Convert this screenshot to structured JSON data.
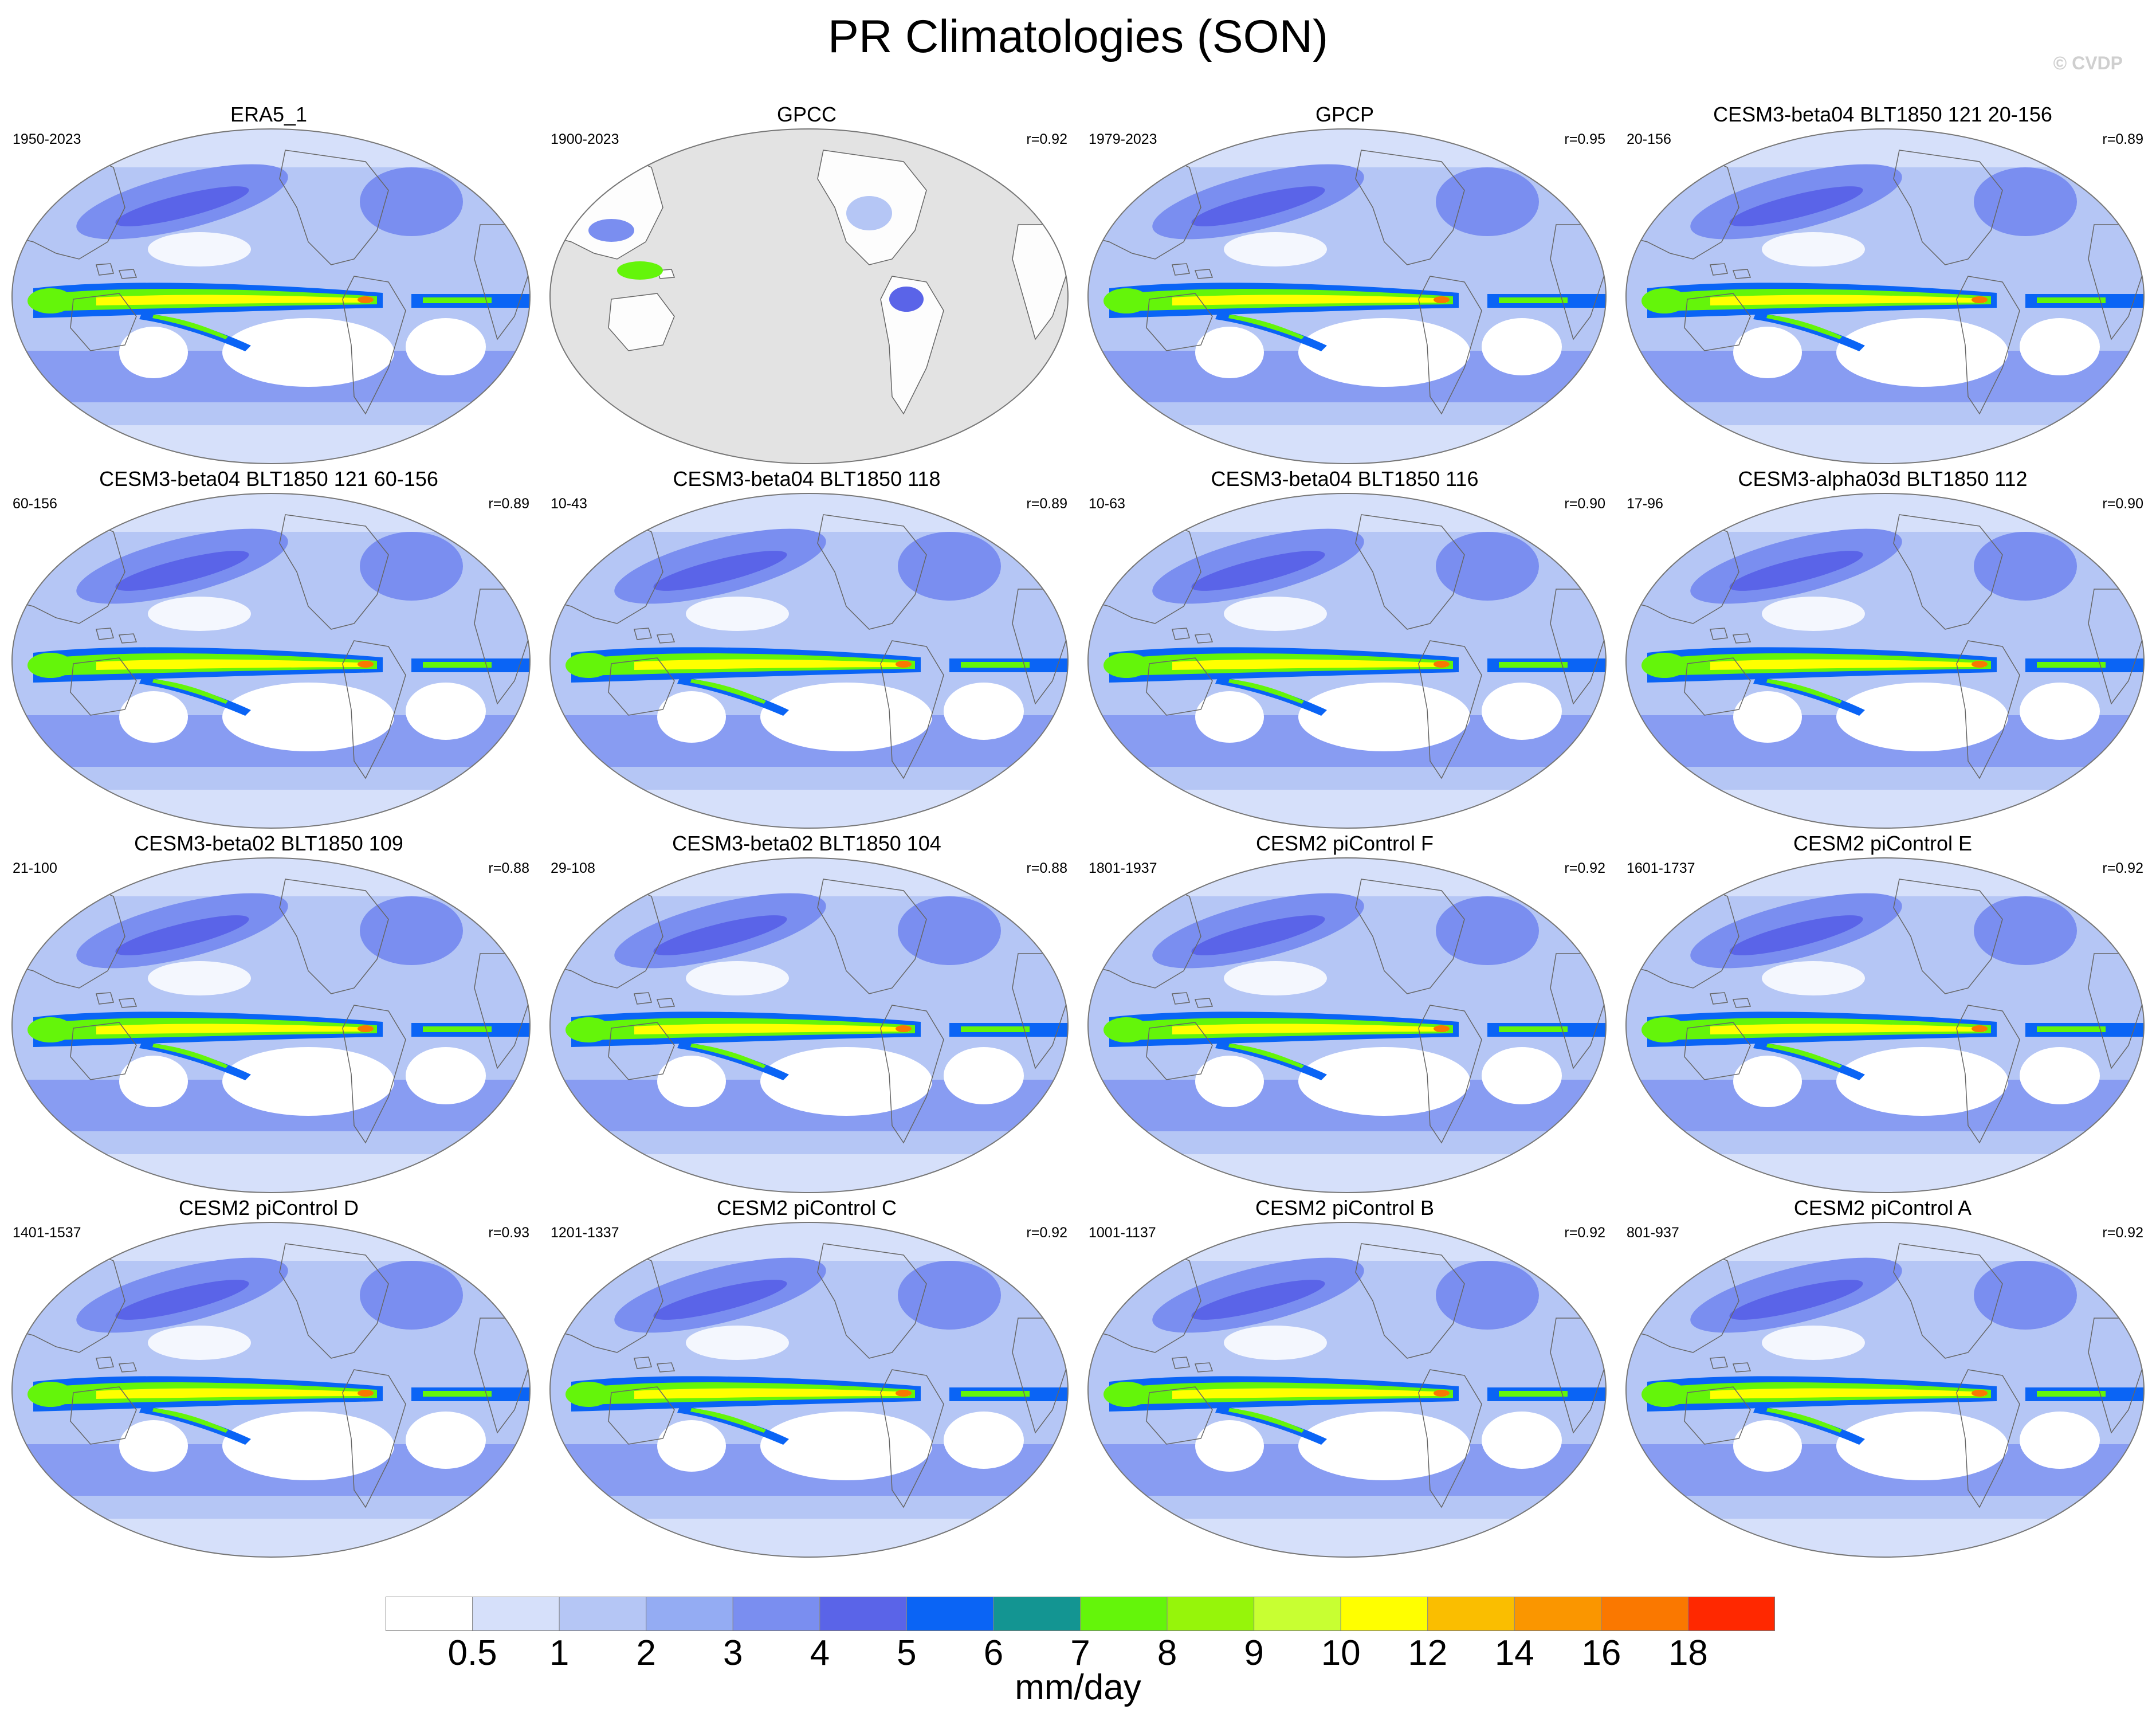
{
  "title": "PR Climatologies (SON)",
  "watermark": "© CVDP",
  "panels": [
    {
      "name": "ERA5_1",
      "years": "1950-2023",
      "r": "",
      "style": "reanalysis"
    },
    {
      "name": "GPCC",
      "years": "1900-2023",
      "r": "r=0.92",
      "style": "land-only"
    },
    {
      "name": "GPCP",
      "years": "1979-2023",
      "r": "r=0.95",
      "style": "obs"
    },
    {
      "name": "CESM3-beta04 BLT1850 121 20-156",
      "years": "20-156",
      "r": "r=0.89",
      "style": "model"
    },
    {
      "name": "CESM3-beta04 BLT1850 121 60-156",
      "years": "60-156",
      "r": "r=0.89",
      "style": "model"
    },
    {
      "name": "CESM3-beta04 BLT1850 118",
      "years": "10-43",
      "r": "r=0.89",
      "style": "model"
    },
    {
      "name": "CESM3-beta04 BLT1850 116",
      "years": "10-63",
      "r": "r=0.90",
      "style": "model"
    },
    {
      "name": "CESM3-alpha03d BLT1850 112",
      "years": "17-96",
      "r": "r=0.90",
      "style": "model"
    },
    {
      "name": "CESM3-beta02 BLT1850 109",
      "years": "21-100",
      "r": "r=0.88",
      "style": "model"
    },
    {
      "name": "CESM3-beta02 BLT1850 104",
      "years": "29-108",
      "r": "r=0.88",
      "style": "model"
    },
    {
      "name": "CESM2 piControl F",
      "years": "1801-1937",
      "r": "r=0.92",
      "style": "model"
    },
    {
      "name": "CESM2 piControl E",
      "years": "1601-1737",
      "r": "r=0.92",
      "style": "model"
    },
    {
      "name": "CESM2 piControl D",
      "years": "1401-1537",
      "r": "r=0.93",
      "style": "model"
    },
    {
      "name": "CESM2 piControl C",
      "years": "1201-1337",
      "r": "r=0.92",
      "style": "model"
    },
    {
      "name": "CESM2 piControl B",
      "years": "1001-1137",
      "r": "r=0.92",
      "style": "model"
    },
    {
      "name": "CESM2 piControl A",
      "years": "801-937",
      "r": "r=0.92",
      "style": "model"
    }
  ],
  "colorbar": {
    "units": "mm/day",
    "levels": [
      "0.5",
      "1",
      "2",
      "3",
      "4",
      "5",
      "6",
      "7",
      "8",
      "9",
      "10",
      "12",
      "14",
      "16",
      "18"
    ],
    "colors": [
      "#ffffff",
      "#d6e0fa",
      "#b5c6f5",
      "#94acf3",
      "#7a8ef0",
      "#5a64e8",
      "#0a64f5",
      "#139592",
      "#64f50a",
      "#96f50a",
      "#c8ff32",
      "#ffff00",
      "#fabe00",
      "#fa9600",
      "#fa7800",
      "#ff2800"
    ]
  },
  "map_colors": {
    "ocean_light": "#d6e0fa",
    "ocean_mid": "#b5c6f5",
    "ocean_dark": "#7a8ef0",
    "storm_track": "#5a64e8",
    "itcz_outer": "#0a64f5",
    "itcz_mid": "#64f50a",
    "itcz_core": "#ffff00",
    "itcz_peak": "#fa7800",
    "dry": "#ffffff",
    "missing": "#e3e3e3",
    "coast": "#666666"
  }
}
